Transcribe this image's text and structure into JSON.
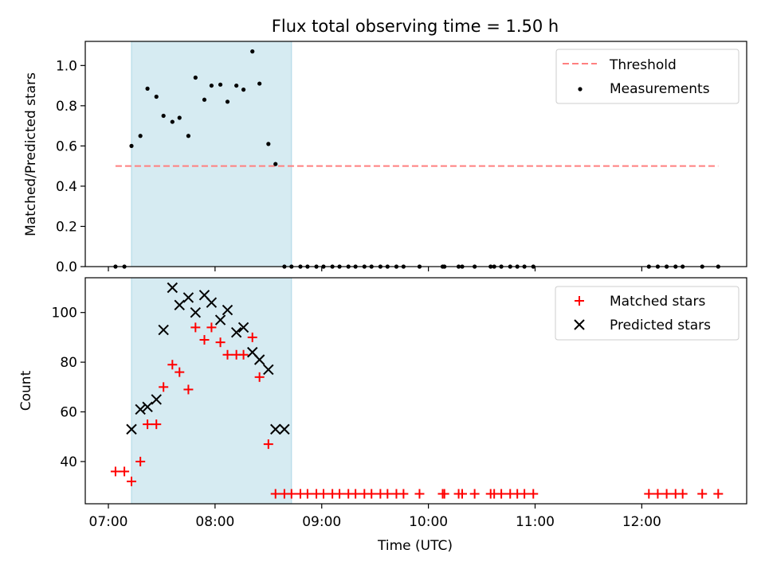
{
  "chart_data": [
    {
      "type": "scatter",
      "title": "Flux total observing time = 1.50 h",
      "xlabel": "",
      "ylabel": "Matched/Predicted stars",
      "ylim": [
        0,
        1.12
      ],
      "xlim": [
        "06:47",
        "12:59"
      ],
      "yticks": [
        "0.0",
        "0.2",
        "0.4",
        "0.6",
        "0.8",
        "1.0"
      ],
      "shaded_interval": [
        "07:13",
        "08:43"
      ],
      "legend_position": "top-right",
      "threshold": {
        "name": "Threshold",
        "value": 0.5,
        "x_range": [
          "07:04",
          "12:43"
        ],
        "color": "#ff7f7f"
      },
      "series": [
        {
          "name": "Measurements",
          "color": "#000000",
          "x": [
            "07:04",
            "07:09",
            "07:13",
            "07:18",
            "07:22",
            "07:27",
            "07:31",
            "07:36",
            "07:40",
            "07:45",
            "07:49",
            "07:54",
            "07:58",
            "08:03",
            "08:07",
            "08:12",
            "08:16",
            "08:21",
            "08:25",
            "08:30",
            "08:34",
            "08:39",
            "08:43",
            "08:48",
            "08:52",
            "08:57",
            "09:01",
            "09:06",
            "09:10",
            "09:15",
            "09:19",
            "09:24",
            "09:28",
            "09:33",
            "09:37",
            "09:42",
            "09:46",
            "09:55",
            "10:08",
            "10:09",
            "10:17",
            "10:19",
            "10:26",
            "10:35",
            "10:37",
            "10:41",
            "10:46",
            "10:50",
            "10:54",
            "10:59",
            "12:04",
            "12:09",
            "12:14",
            "12:19",
            "12:23",
            "12:34",
            "12:43"
          ],
          "y": [
            0,
            0,
            0.6,
            0.65,
            0.885,
            0.845,
            0.75,
            0.72,
            0.74,
            0.65,
            0.94,
            0.83,
            0.9,
            0.905,
            0.82,
            0.9,
            0.88,
            1.07,
            0.91,
            0.61,
            0.51,
            0,
            0,
            0,
            0,
            0,
            0,
            0,
            0,
            0,
            0,
            0,
            0,
            0,
            0,
            0,
            0,
            0,
            0,
            0,
            0,
            0,
            0,
            0,
            0,
            0,
            0,
            0,
            0,
            0,
            0,
            0,
            0,
            0,
            0,
            0,
            0
          ]
        }
      ]
    },
    {
      "type": "scatter",
      "title": "",
      "xlabel": "Time (UTC)",
      "ylabel": "Count",
      "ylim": [
        23,
        114
      ],
      "xlim": [
        "06:47",
        "12:59"
      ],
      "xticks": [
        "07:00",
        "08:00",
        "09:00",
        "10:00",
        "11:00",
        "12:00"
      ],
      "yticks": [
        "40",
        "60",
        "80",
        "100"
      ],
      "shaded_interval": [
        "07:13",
        "08:43"
      ],
      "legend_position": "top-right",
      "series": [
        {
          "name": "Matched stars",
          "marker": "+",
          "color": "#ff0000",
          "x": [
            "07:04",
            "07:09",
            "07:13",
            "07:18",
            "07:22",
            "07:27",
            "07:31",
            "07:36",
            "07:40",
            "07:45",
            "07:49",
            "07:54",
            "07:58",
            "08:03",
            "08:07",
            "08:12",
            "08:16",
            "08:21",
            "08:25",
            "08:30",
            "08:34",
            "08:39",
            "08:43",
            "08:48",
            "08:52",
            "08:57",
            "09:01",
            "09:06",
            "09:10",
            "09:15",
            "09:19",
            "09:24",
            "09:28",
            "09:33",
            "09:37",
            "09:42",
            "09:46",
            "09:55",
            "10:08",
            "10:09",
            "10:17",
            "10:19",
            "10:26",
            "10:35",
            "10:37",
            "10:41",
            "10:46",
            "10:50",
            "10:54",
            "10:59",
            "12:04",
            "12:09",
            "12:14",
            "12:19",
            "12:23",
            "12:34",
            "12:43"
          ],
          "y": [
            36,
            36,
            32,
            40,
            55,
            55,
            70,
            79,
            76,
            69,
            94,
            89,
            94,
            88,
            83,
            83,
            83,
            90,
            74,
            47,
            27,
            27,
            27,
            27,
            27,
            27,
            27,
            27,
            27,
            27,
            27,
            27,
            27,
            27,
            27,
            27,
            27,
            27,
            27,
            27,
            27,
            27,
            27,
            27,
            27,
            27,
            27,
            27,
            27,
            27,
            27,
            27,
            27,
            27,
            27,
            27,
            27
          ]
        },
        {
          "name": "Predicted stars",
          "marker": "x",
          "color": "#000000",
          "x": [
            "07:13",
            "07:18",
            "07:22",
            "07:27",
            "07:31",
            "07:36",
            "07:40",
            "07:45",
            "07:49",
            "07:54",
            "07:58",
            "08:03",
            "08:07",
            "08:12",
            "08:16",
            "08:21",
            "08:25",
            "08:30",
            "08:34",
            "08:39"
          ],
          "y": [
            53,
            61,
            62,
            65,
            93,
            110,
            103,
            106,
            100,
            107,
            104,
            97,
            101,
            92,
            94,
            84,
            81,
            77,
            53,
            53
          ]
        }
      ]
    }
  ]
}
